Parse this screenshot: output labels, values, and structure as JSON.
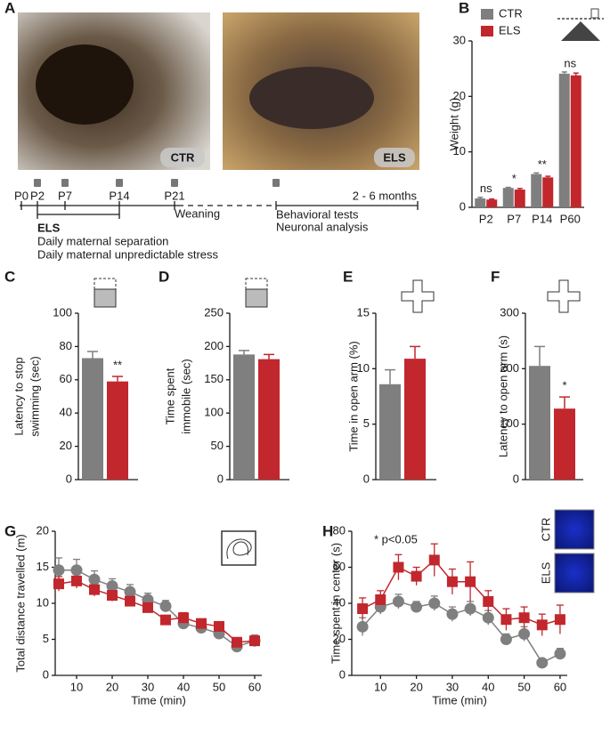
{
  "figure": {
    "panel_letters": [
      "A",
      "B",
      "C",
      "D",
      "E",
      "F",
      "G",
      "H"
    ],
    "photo_labels": [
      "CTR",
      "ELS"
    ],
    "timeline": {
      "ticks": [
        "P0",
        "P2",
        "P7",
        "P14",
        "P21"
      ],
      "end_label": "2 - 6 months",
      "weaning": "Weaning",
      "tests": [
        "Behavioral tests",
        "Neuronal analysis"
      ],
      "els_title": "ELS",
      "els_notes": [
        "Daily maternal separation",
        "Daily maternal unpredictable stress"
      ]
    },
    "inset_labels": [
      "CTR",
      "ELS"
    ]
  },
  "chart_data": [
    {
      "type": "bar",
      "y_label": "Weight (g)",
      "categories": [
        "P2",
        "P7",
        "P14",
        "P60"
      ],
      "series": [
        {
          "name": "CTR",
          "color": "#7f7f7f",
          "values": [
            1.6,
            3.5,
            6.0,
            24.1
          ],
          "errors": [
            0.2,
            0.1,
            0.2,
            0.3
          ]
        },
        {
          "name": "ELS",
          "color": "#c1272d",
          "values": [
            1.4,
            3.2,
            5.4,
            23.8
          ],
          "errors": [
            0.1,
            0.2,
            0.2,
            0.4
          ]
        }
      ],
      "annotations": [
        "ns",
        "*",
        "**",
        "ns"
      ],
      "ylim": [
        0,
        30
      ],
      "yticks": [
        0,
        10,
        20,
        30
      ]
    },
    {
      "type": "bar",
      "y_label": [
        "Latency to stop",
        "swimming (sec)"
      ],
      "values": [
        73,
        59
      ],
      "errors": [
        4,
        3
      ],
      "colors": [
        "#7f7f7f",
        "#c1272d"
      ],
      "annotations": [
        null,
        "**"
      ],
      "ylim": [
        0,
        100
      ],
      "yticks": [
        0,
        20,
        40,
        60,
        80,
        100
      ]
    },
    {
      "type": "bar",
      "y_label": [
        "Time spent",
        "immobile (sec)"
      ],
      "values": [
        188,
        181
      ],
      "errors": [
        6,
        7
      ],
      "colors": [
        "#7f7f7f",
        "#c1272d"
      ],
      "ylim": [
        0,
        250
      ],
      "yticks": [
        0,
        50,
        100,
        150,
        200,
        250
      ]
    },
    {
      "type": "bar",
      "y_label": "Time in open arm (%)",
      "values": [
        8.6,
        10.9
      ],
      "errors": [
        1.3,
        1.1
      ],
      "colors": [
        "#7f7f7f",
        "#c1272d"
      ],
      "ylim": [
        0,
        15
      ],
      "yticks": [
        0,
        5,
        10,
        15
      ]
    },
    {
      "type": "bar",
      "y_label": "Latency to open arm (s)",
      "values": [
        205,
        128
      ],
      "errors": [
        35,
        21
      ],
      "colors": [
        "#7f7f7f",
        "#c1272d"
      ],
      "annotations": [
        null,
        "*"
      ],
      "ylim": [
        0,
        300
      ],
      "yticks": [
        0,
        100,
        200,
        300
      ]
    },
    {
      "type": "line",
      "y_label": "Total distance travelled (m)",
      "x_label": "Time (min)",
      "x": [
        5,
        10,
        15,
        20,
        25,
        30,
        35,
        40,
        45,
        50,
        55,
        60
      ],
      "series": [
        {
          "color": "#7f7f7f",
          "marker": "circle",
          "values": [
            14.6,
            14.6,
            13.3,
            12.4,
            11.6,
            10.5,
            9.6,
            7.2,
            6.6,
            5.8,
            4.0,
            4.8
          ],
          "errors": [
            1.7,
            1.5,
            1.2,
            1.0,
            1.0,
            0.9,
            0.8,
            0.7,
            0.6,
            0.6,
            0.6,
            0.8
          ]
        },
        {
          "color": "#c1272d",
          "marker": "square",
          "values": [
            12.7,
            13.1,
            11.9,
            11.1,
            10.3,
            9.4,
            7.7,
            8.0,
            7.2,
            6.8,
            4.6,
            4.8
          ],
          "errors": [
            1.0,
            1.0,
            0.9,
            0.8,
            0.7,
            0.7,
            0.6,
            0.7,
            0.6,
            0.6,
            0.5,
            0.6
          ]
        }
      ],
      "xlim": [
        4,
        62
      ],
      "xticks": [
        10,
        20,
        30,
        40,
        50,
        60
      ],
      "ylim": [
        0,
        20
      ],
      "yticks": [
        0,
        5,
        10,
        15,
        20
      ]
    },
    {
      "type": "line",
      "y_label": "Time spent in center (s)",
      "x_label": "Time (min)",
      "annotation": "* p<0.05",
      "x": [
        5,
        10,
        15,
        20,
        25,
        30,
        35,
        40,
        45,
        50,
        55,
        60
      ],
      "series": [
        {
          "color": "#7f7f7f",
          "marker": "circle",
          "values": [
            27,
            38,
            41,
            38,
            40,
            34,
            37,
            32,
            20,
            23,
            7,
            12
          ],
          "errors": [
            5,
            4,
            4,
            3,
            4,
            4,
            4,
            4,
            3,
            4,
            1,
            3
          ]
        },
        {
          "color": "#c1272d",
          "marker": "square",
          "values": [
            37,
            42,
            60,
            55,
            64,
            52,
            52,
            41,
            31,
            32,
            28,
            31
          ],
          "errors": [
            6,
            5,
            7,
            5,
            9,
            7,
            11,
            6,
            6,
            6,
            6,
            8
          ]
        }
      ],
      "xlim": [
        2,
        62
      ],
      "xticks": [
        10,
        20,
        30,
        40,
        50,
        60
      ],
      "ylim": [
        0,
        80
      ],
      "yticks": [
        0,
        20,
        40,
        60,
        80
      ]
    }
  ]
}
